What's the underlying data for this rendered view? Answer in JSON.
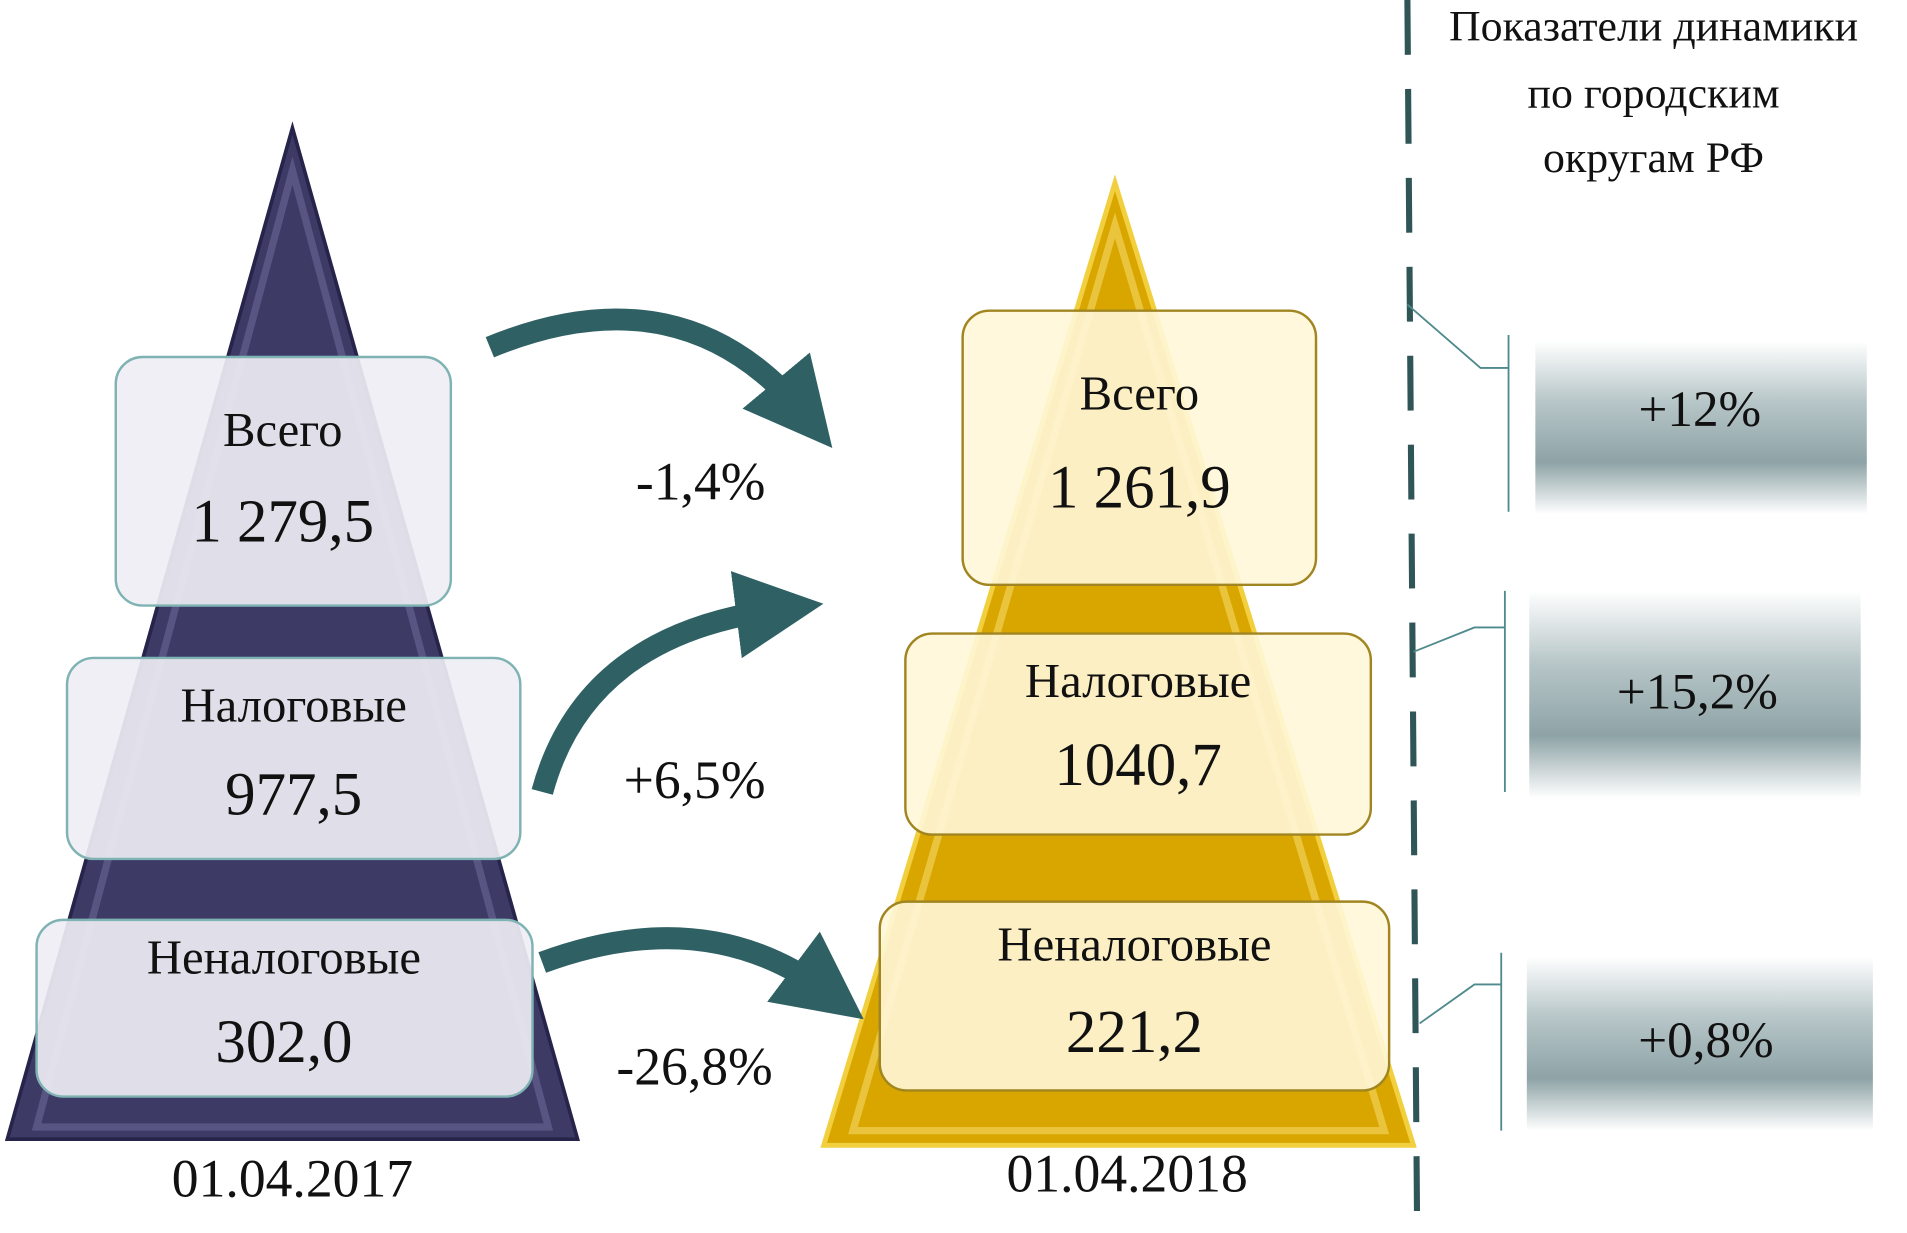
{
  "header": {
    "title_lines": [
      "Показатели динамики",
      "по городским",
      "округам РФ"
    ]
  },
  "pyramids": [
    {
      "date": "01.04.2017",
      "items": [
        {
          "label": "Всего",
          "value": "1 279,5"
        },
        {
          "label": "Налоговые",
          "value": "977,5"
        },
        {
          "label": "Неналоговые",
          "value": "302,0"
        }
      ]
    },
    {
      "date": "01.04.2018",
      "items": [
        {
          "label": "Всего",
          "value": "1 261,9"
        },
        {
          "label": "Налоговые",
          "value": "1040,7"
        },
        {
          "label": "Неналоговые",
          "value": "221,2"
        }
      ]
    }
  ],
  "changes": [
    "-1,4%",
    "+6,5%",
    "-26,8%"
  ],
  "dynamics": [
    "+12%",
    "+15,2%",
    "+0,8%"
  ]
}
